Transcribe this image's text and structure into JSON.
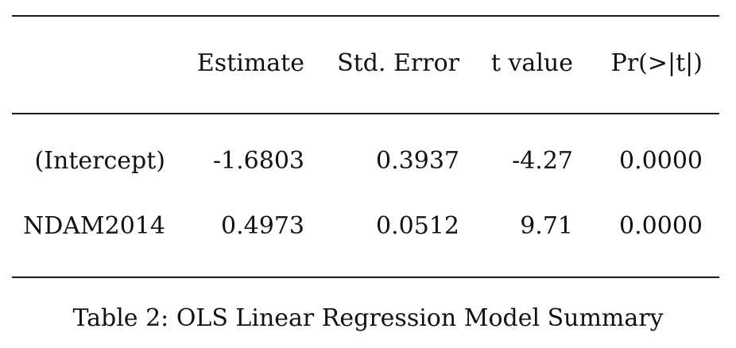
{
  "table": {
    "columns": [
      "",
      "Estimate",
      "Std. Error",
      "t value",
      "Pr(>|t|)"
    ],
    "rows": [
      [
        "(Intercept)",
        "-1.6803",
        "0.3937",
        "-4.27",
        "0.0000"
      ],
      [
        "NDAM2014",
        "0.4973",
        "0.0512",
        "9.71",
        "0.0000"
      ]
    ]
  },
  "caption": "Table 2: OLS Linear Regression Model Summary"
}
